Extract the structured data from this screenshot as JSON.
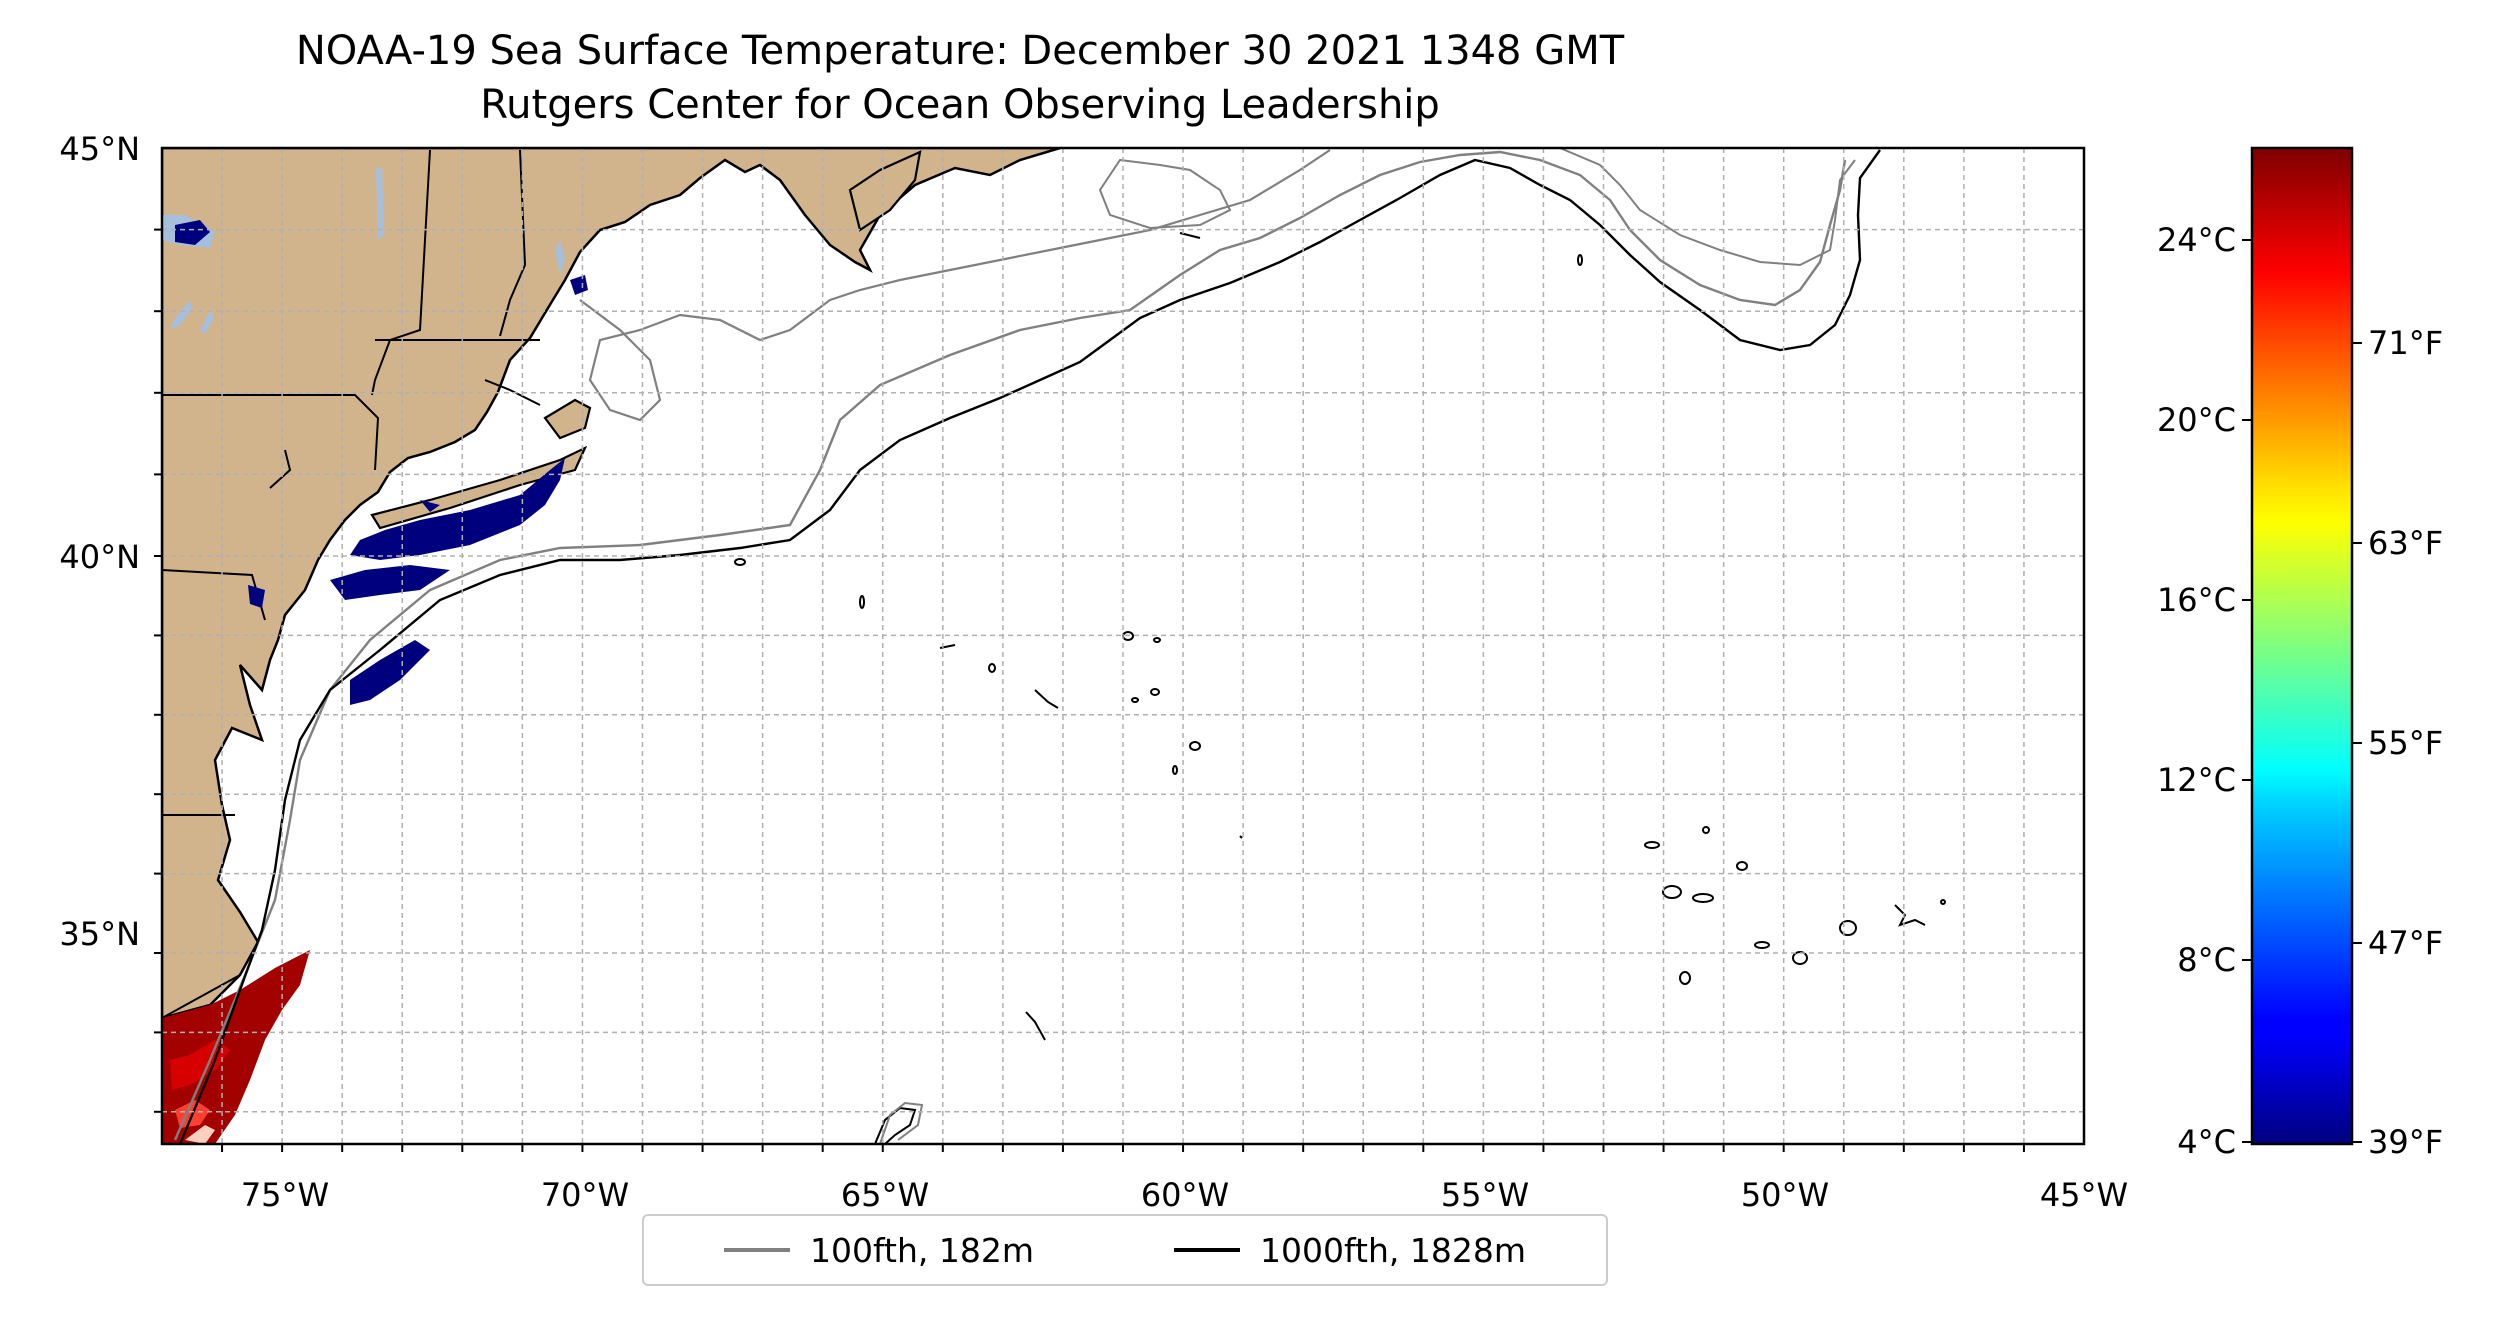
{
  "title": "NOAA-19 Sea Surface Temperature: December 30 2021 1348 GMT",
  "subtitle": "Rutgers Center for Ocean Observing Leadership",
  "map": {
    "lon_range": [
      -77,
      -45
    ],
    "lat_range": [
      32.2,
      45
    ],
    "lon_ticks": [
      "75°W",
      "70°W",
      "65°W",
      "60°W",
      "55°W",
      "50°W",
      "45°W"
    ],
    "lat_ticks": [
      "45°N",
      "40°N",
      "35°N"
    ],
    "gridlines": true,
    "colors": {
      "land": "#d2b48c",
      "lakes": "#a5bfdd",
      "cold_sst": "#00007f",
      "warm_sst": "#b00000"
    }
  },
  "colorbar": {
    "colormap": "jet",
    "celsius_ticks": [
      "24°C",
      "20°C",
      "16°C",
      "12°C",
      "8°C",
      "4°C"
    ],
    "fahrenheit_ticks": [
      "71°F",
      "63°F",
      "55°F",
      "47°F",
      "39°F"
    ]
  },
  "legend": {
    "items": [
      {
        "label": "100fth, 182m",
        "color": "#808080"
      },
      {
        "label": "1000fth, 1828m",
        "color": "#000000"
      }
    ]
  }
}
